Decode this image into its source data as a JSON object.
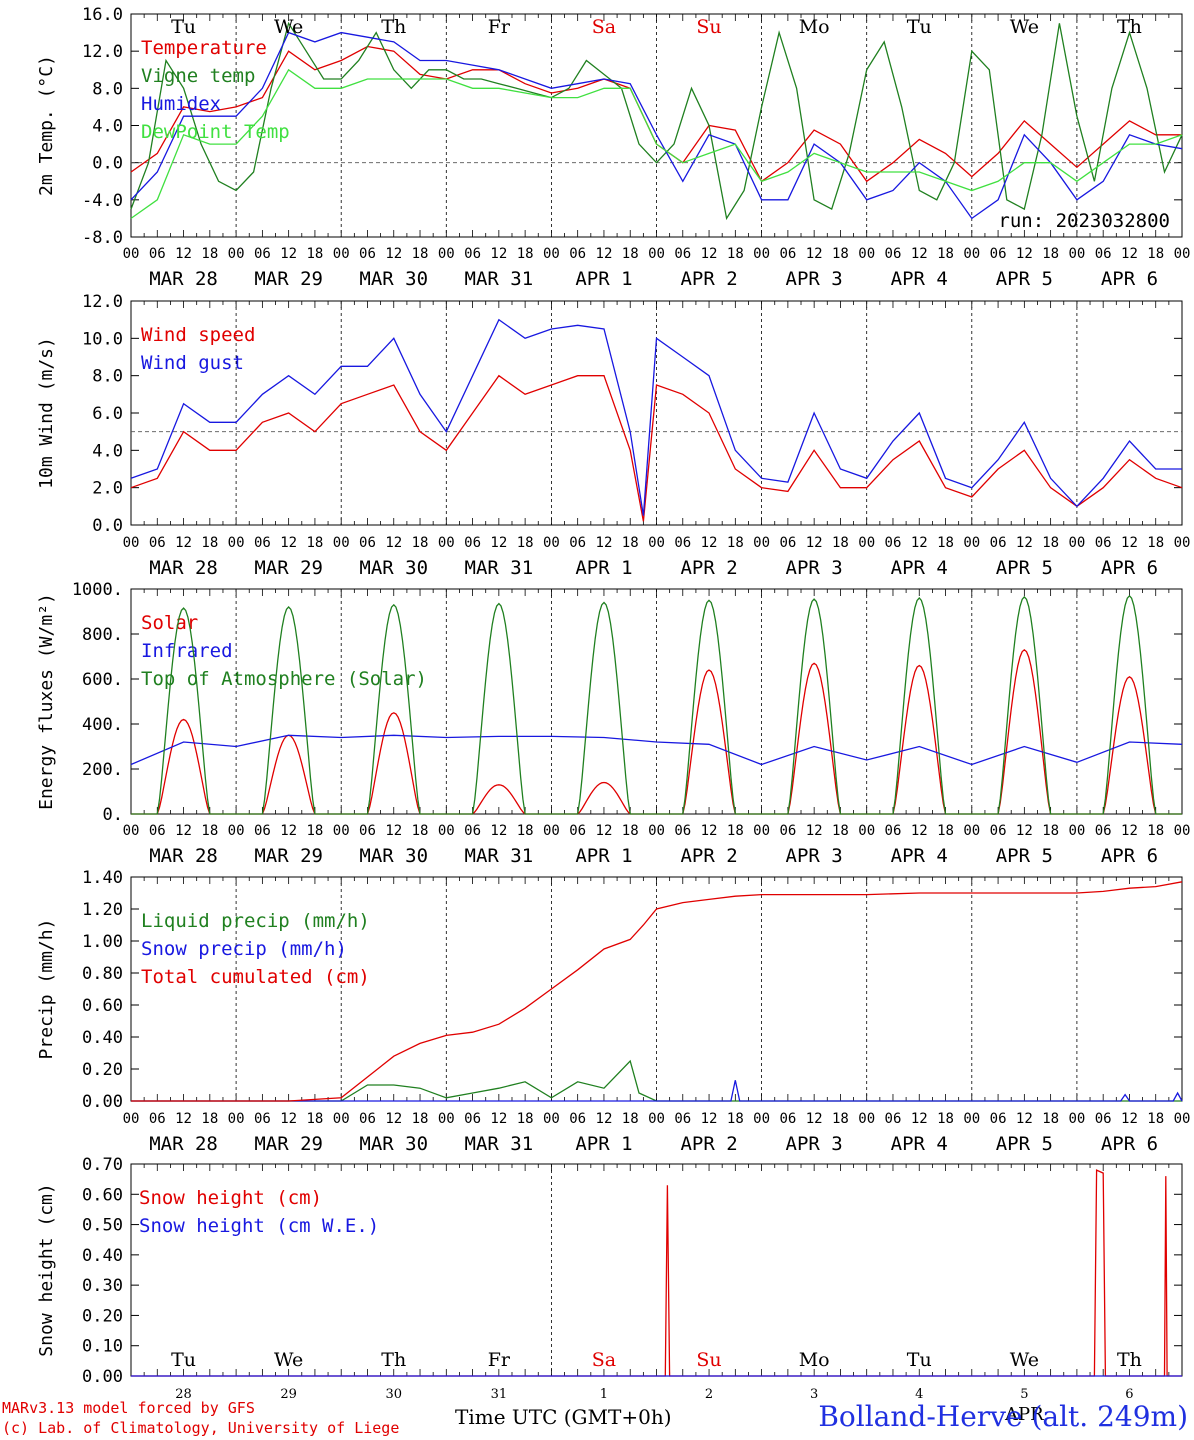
{
  "colors": {
    "red": "#e00000",
    "darkgreen": "#208020",
    "blue": "#1818e0",
    "lightgreen": "#40e040",
    "black": "#000000"
  },
  "days": {
    "weekday": [
      "Tu",
      "We",
      "Th",
      "Fr",
      "Sa",
      "Su",
      "Mo",
      "Tu",
      "We",
      "Th"
    ],
    "weekday_colors": [
      "#000000",
      "#000000",
      "#000000",
      "#000000",
      "#e00000",
      "#e00000",
      "#000000",
      "#000000",
      "#000000",
      "#000000"
    ],
    "date_labels": [
      "MAR 28",
      "MAR 29",
      "MAR 30",
      "MAR 31",
      "APR  1",
      "APR  2",
      "APR  3",
      "APR  4",
      "APR  5",
      "APR  6"
    ],
    "hour_labels": [
      "00",
      "06",
      "12",
      "18"
    ],
    "hour_label_end": "00",
    "day_numbers": [
      "28",
      "29",
      "30",
      "31",
      "1",
      "2",
      "3",
      "4",
      "5",
      "6"
    ]
  },
  "run_label": "run: 2023032800",
  "footer": {
    "credit_line1": "MARv3.13 model forced by GFS",
    "credit_line2": "(c) Lab. of Climatology, University of Liege",
    "xlabel": "Time UTC (GMT+0h)",
    "month_overlay": "APR",
    "station": "Bolland-Herve (alt. 249m)"
  },
  "chart_data": [
    {
      "type": "line",
      "ylabel": "2m Temp. (°C)",
      "ylim": [
        -8,
        16
      ],
      "y_ticks": [
        "16.0",
        "12.0",
        "8.0",
        "4.0",
        "0.0",
        "-4.0",
        "-8.0"
      ],
      "ref_line": 0,
      "x_unit": "hours since MAR 28 00 UTC",
      "xlim": [
        0,
        240
      ],
      "series": [
        {
          "name": "Temperature",
          "color": "#e00000",
          "x": [
            0,
            6,
            12,
            18,
            24,
            30,
            36,
            42,
            48,
            54,
            60,
            66,
            72,
            78,
            84,
            90,
            96,
            102,
            108,
            114,
            120,
            126,
            132,
            138,
            144,
            150,
            156,
            162,
            168,
            174,
            180,
            186,
            192,
            198,
            204,
            210,
            216,
            222,
            228,
            234,
            240
          ],
          "y": [
            -1,
            1,
            6,
            5.5,
            6,
            7,
            12,
            10,
            11,
            12.5,
            12,
            9.5,
            9,
            10,
            10,
            8.5,
            7.5,
            8,
            9,
            8,
            2,
            0,
            4,
            3.5,
            -2,
            0,
            3.5,
            2,
            -2,
            0,
            2.5,
            1,
            -1.5,
            1,
            4.5,
            2,
            -0.5,
            2,
            4.5,
            3,
            3
          ]
        },
        {
          "name": "Vigne temp",
          "color": "#208020",
          "x": [
            0,
            4,
            8,
            12,
            16,
            20,
            24,
            28,
            32,
            36,
            40,
            44,
            48,
            52,
            56,
            60,
            64,
            68,
            72,
            76,
            80,
            84,
            88,
            92,
            96,
            100,
            104,
            108,
            112,
            116,
            120,
            124,
            128,
            132,
            136,
            140,
            144,
            148,
            152,
            156,
            160,
            164,
            168,
            172,
            176,
            180,
            184,
            188,
            192,
            196,
            200,
            204,
            208,
            212,
            216,
            220,
            224,
            228,
            232,
            236,
            240
          ],
          "y": [
            -5,
            0,
            11,
            8,
            2,
            -2,
            -3,
            -1,
            8,
            15,
            12,
            9,
            9,
            11,
            14,
            10,
            8,
            10,
            10,
            9,
            9,
            8.5,
            8,
            7.5,
            7,
            8,
            11,
            9.5,
            8,
            2,
            0,
            2,
            8,
            4,
            -6,
            -3,
            6,
            14,
            8,
            -4,
            -5,
            1,
            10,
            13,
            6,
            -3,
            -4,
            0,
            12,
            10,
            -4,
            -5,
            3,
            15,
            5,
            -2,
            8,
            14,
            8,
            -1,
            3
          ]
        },
        {
          "name": "Humidex",
          "color": "#1818e0",
          "x": [
            0,
            6,
            12,
            18,
            24,
            30,
            36,
            42,
            48,
            54,
            60,
            66,
            72,
            78,
            84,
            90,
            96,
            102,
            108,
            114,
            120,
            126,
            132,
            138,
            144,
            150,
            156,
            162,
            168,
            174,
            180,
            186,
            192,
            198,
            204,
            210,
            216,
            222,
            228,
            234,
            240
          ],
          "y": [
            -4,
            -1,
            5,
            5,
            5,
            8,
            14,
            13,
            14,
            13.5,
            13,
            11,
            11,
            10.5,
            10,
            9,
            8,
            8.5,
            9,
            8.5,
            3,
            -2,
            3,
            2,
            -4,
            -4,
            2,
            0,
            -4,
            -3,
            0,
            -2,
            -6,
            -4,
            3,
            0,
            -4,
            -2,
            3,
            2,
            1.5
          ]
        },
        {
          "name": "DewPoint Temp",
          "color": "#40e040",
          "x": [
            0,
            6,
            12,
            18,
            24,
            30,
            36,
            42,
            48,
            54,
            60,
            66,
            72,
            78,
            84,
            90,
            96,
            102,
            108,
            114,
            120,
            126,
            132,
            138,
            144,
            150,
            156,
            162,
            168,
            174,
            180,
            186,
            192,
            198,
            204,
            210,
            216,
            222,
            228,
            234,
            240
          ],
          "y": [
            -6,
            -4,
            3,
            2,
            2,
            5,
            10,
            8,
            8,
            9,
            9,
            9,
            9,
            8,
            8,
            7.5,
            7,
            7,
            8,
            8,
            2,
            0,
            1,
            2,
            -2,
            -1,
            1,
            0,
            -1,
            -1,
            -1,
            -2,
            -3,
            -2,
            0,
            0,
            -2,
            0,
            2,
            2,
            3
          ]
        }
      ]
    },
    {
      "type": "line",
      "ylabel": "10m Wind (m/s)",
      "ylim": [
        0,
        12
      ],
      "y_ticks": [
        "12.0",
        "10.0",
        "8.0",
        "6.0",
        "4.0",
        "2.0",
        "0.0"
      ],
      "ref_line": 5,
      "x_unit": "hours since MAR 28 00 UTC",
      "xlim": [
        0,
        240
      ],
      "series": [
        {
          "name": "Wind speed",
          "color": "#e00000",
          "x": [
            0,
            6,
            12,
            18,
            24,
            30,
            36,
            42,
            48,
            54,
            60,
            66,
            72,
            78,
            84,
            90,
            96,
            102,
            108,
            114,
            117,
            120,
            126,
            132,
            138,
            144,
            150,
            156,
            162,
            168,
            174,
            180,
            186,
            192,
            198,
            204,
            210,
            216,
            222,
            228,
            234,
            240
          ],
          "y": [
            2,
            2.5,
            5,
            4,
            4,
            5.5,
            6,
            5,
            6.5,
            7,
            7.5,
            5,
            4,
            6,
            8,
            7,
            7.5,
            8,
            8,
            4,
            0.2,
            7.5,
            7,
            6,
            3,
            2,
            1.8,
            4,
            2,
            2,
            3.5,
            4.5,
            2,
            1.5,
            3,
            4,
            2,
            1,
            2,
            3.5,
            2.5,
            2
          ]
        },
        {
          "name": "Wind gust",
          "color": "#1818e0",
          "x": [
            0,
            6,
            12,
            18,
            24,
            30,
            36,
            42,
            48,
            54,
            60,
            66,
            72,
            78,
            84,
            90,
            96,
            102,
            108,
            114,
            117,
            120,
            126,
            132,
            138,
            144,
            150,
            156,
            162,
            168,
            174,
            180,
            186,
            192,
            198,
            204,
            210,
            216,
            222,
            228,
            234,
            240
          ],
          "y": [
            2.5,
            3,
            6.5,
            5.5,
            5.5,
            7,
            8,
            7,
            8.5,
            8.5,
            10,
            7,
            5,
            8,
            11,
            10,
            10.5,
            10.7,
            10.5,
            5,
            0.5,
            10,
            9,
            8,
            4,
            2.5,
            2.3,
            6,
            3,
            2.5,
            4.5,
            6,
            2.5,
            2,
            3.5,
            5.5,
            2.5,
            1,
            2.5,
            4.5,
            3,
            3
          ]
        }
      ]
    },
    {
      "type": "line",
      "ylabel": "Energy fluxes (W/m²)",
      "ylim": [
        0,
        1000
      ],
      "y_ticks": [
        "1000.",
        "800.",
        "600.",
        "400.",
        "200.",
        "0."
      ],
      "x_unit": "hours since MAR 28 00 UTC",
      "xlim": [
        0,
        240
      ],
      "series": [
        {
          "name": "Solar",
          "color": "#e00000",
          "daily_peak": [
            420,
            350,
            450,
            130,
            140,
            640,
            670,
            660,
            730,
            610
          ],
          "x_note": "daylight 06-18 each day"
        },
        {
          "name": "Infrared",
          "color": "#1818e0",
          "x": [
            0,
            12,
            24,
            36,
            48,
            60,
            72,
            84,
            96,
            108,
            120,
            132,
            144,
            156,
            168,
            180,
            192,
            204,
            216,
            228,
            240
          ],
          "y": [
            220,
            320,
            300,
            350,
            340,
            350,
            340,
            345,
            345,
            340,
            320,
            310,
            220,
            300,
            240,
            300,
            220,
            300,
            230,
            320,
            310
          ]
        },
        {
          "name": "Top of Atmosphere (Solar)",
          "color": "#208020",
          "daily_peak": [
            915,
            920,
            930,
            935,
            940,
            950,
            955,
            960,
            965,
            970
          ],
          "x_note": "daylight 06-18 each day"
        }
      ]
    },
    {
      "type": "line",
      "ylabel": "Precip (mm/h)",
      "ylim": [
        0,
        1.4
      ],
      "y_ticks": [
        "1.40",
        "1.20",
        "1.00",
        "0.80",
        "0.60",
        "0.40",
        "0.20",
        "0.00"
      ],
      "x_unit": "hours since MAR 28 00 UTC",
      "xlim": [
        0,
        240
      ],
      "series": [
        {
          "name": "Liquid precip (mm/h)",
          "color": "#208020",
          "x": [
            0,
            48,
            54,
            60,
            66,
            72,
            78,
            84,
            90,
            96,
            102,
            108,
            114,
            116,
            120,
            126,
            132,
            240
          ],
          "y": [
            0,
            0,
            0.1,
            0.1,
            0.08,
            0.02,
            0.05,
            0.08,
            0.12,
            0.02,
            0.12,
            0.08,
            0.25,
            0.05,
            0,
            0,
            0,
            0
          ]
        },
        {
          "name": "Snow precip (mm/h)",
          "color": "#1818e0",
          "x": [
            0,
            137,
            138,
            139,
            226,
            227,
            228,
            238,
            239,
            240
          ],
          "y": [
            0,
            0,
            0.13,
            0,
            0,
            0.04,
            0,
            0,
            0.05,
            0
          ]
        },
        {
          "name": "Total cumulated (cm)",
          "color": "#e00000",
          "x": [
            0,
            36,
            48,
            54,
            60,
            66,
            72,
            78,
            84,
            90,
            96,
            102,
            108,
            114,
            117,
            120,
            126,
            132,
            138,
            144,
            156,
            168,
            180,
            192,
            204,
            216,
            222,
            228,
            234,
            240
          ],
          "y": [
            0,
            0,
            0.02,
            0.15,
            0.28,
            0.36,
            0.41,
            0.43,
            0.48,
            0.58,
            0.7,
            0.82,
            0.95,
            1.01,
            1.1,
            1.2,
            1.24,
            1.26,
            1.28,
            1.29,
            1.29,
            1.29,
            1.3,
            1.3,
            1.3,
            1.3,
            1.31,
            1.33,
            1.34,
            1.37
          ]
        }
      ]
    },
    {
      "type": "line",
      "ylabel": "Snow height (cm)",
      "ylim": [
        0,
        0.7
      ],
      "y_ticks": [
        "0.70",
        "0.60",
        "0.50",
        "0.40",
        "0.30",
        "0.20",
        "0.10",
        "0.00"
      ],
      "x_unit": "hours since MAR 28 00 UTC",
      "xlim": [
        0,
        240
      ],
      "series": [
        {
          "name": "Snow height (cm)",
          "color": "#e00000",
          "x": [
            0,
            122,
            122.5,
            123,
            220,
            220.5,
            222,
            222.5,
            236,
            236.3,
            236.6,
            240
          ],
          "y": [
            0,
            0,
            0.63,
            0,
            0,
            0.68,
            0.67,
            0,
            0,
            0.66,
            0,
            0
          ]
        },
        {
          "name": "Snow height (cm W.E.)",
          "color": "#1818e0",
          "x": [
            0,
            240
          ],
          "y": [
            0,
            0
          ]
        }
      ]
    }
  ]
}
